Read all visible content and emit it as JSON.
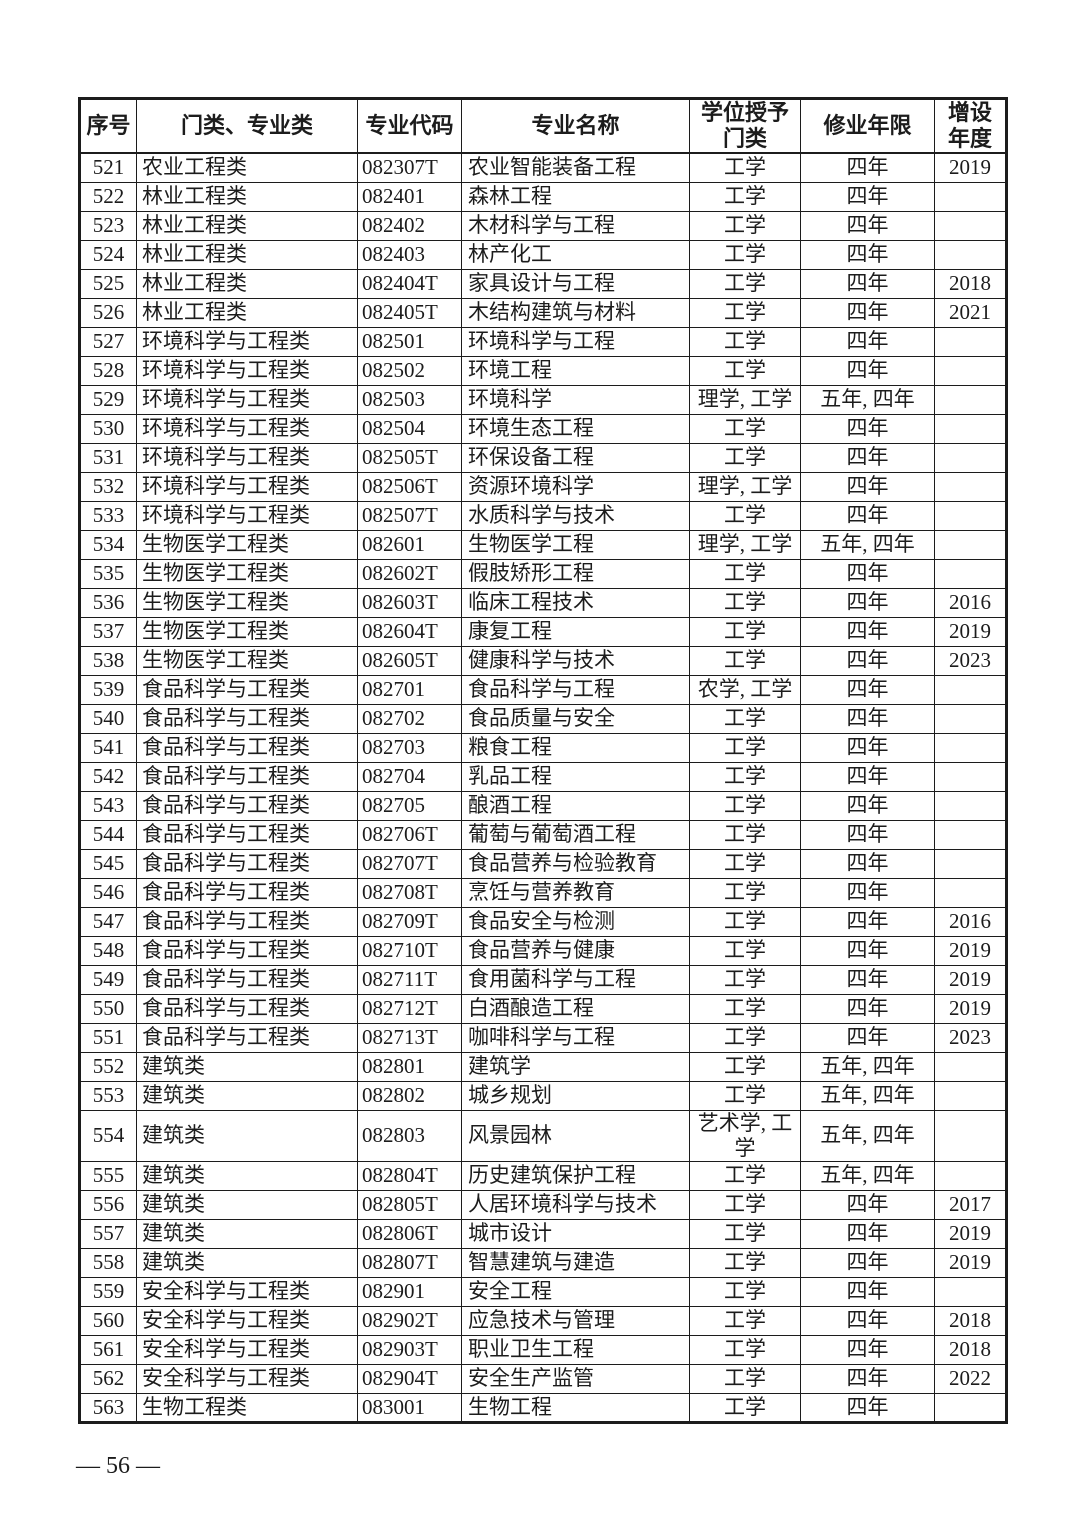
{
  "page": {
    "footer_page_number": "— 56 —"
  },
  "table": {
    "headers": [
      "序号",
      "门类、专业类",
      "专业代码",
      "专业名称",
      "学位授予\n门类",
      "修业年限",
      "增设\n年度"
    ],
    "column_keys": [
      "index",
      "category",
      "code",
      "name",
      "degree",
      "duration",
      "year"
    ],
    "rows": [
      [
        "521",
        "农业工程类",
        "082307T",
        "农业智能装备工程",
        "工学",
        "四年",
        "2019"
      ],
      [
        "522",
        "林业工程类",
        "082401",
        "森林工程",
        "工学",
        "四年",
        ""
      ],
      [
        "523",
        "林业工程类",
        "082402",
        "木材科学与工程",
        "工学",
        "四年",
        ""
      ],
      [
        "524",
        "林业工程类",
        "082403",
        "林产化工",
        "工学",
        "四年",
        ""
      ],
      [
        "525",
        "林业工程类",
        "082404T",
        "家具设计与工程",
        "工学",
        "四年",
        "2018"
      ],
      [
        "526",
        "林业工程类",
        "082405T",
        "木结构建筑与材料",
        "工学",
        "四年",
        "2021"
      ],
      [
        "527",
        "环境科学与工程类",
        "082501",
        "环境科学与工程",
        "工学",
        "四年",
        ""
      ],
      [
        "528",
        "环境科学与工程类",
        "082502",
        "环境工程",
        "工学",
        "四年",
        ""
      ],
      [
        "529",
        "环境科学与工程类",
        "082503",
        "环境科学",
        "理学, 工学",
        "五年, 四年",
        ""
      ],
      [
        "530",
        "环境科学与工程类",
        "082504",
        "环境生态工程",
        "工学",
        "四年",
        ""
      ],
      [
        "531",
        "环境科学与工程类",
        "082505T",
        "环保设备工程",
        "工学",
        "四年",
        ""
      ],
      [
        "532",
        "环境科学与工程类",
        "082506T",
        "资源环境科学",
        "理学, 工学",
        "四年",
        ""
      ],
      [
        "533",
        "环境科学与工程类",
        "082507T",
        "水质科学与技术",
        "工学",
        "四年",
        ""
      ],
      [
        "534",
        "生物医学工程类",
        "082601",
        "生物医学工程",
        "理学, 工学",
        "五年, 四年",
        ""
      ],
      [
        "535",
        "生物医学工程类",
        "082602T",
        "假肢矫形工程",
        "工学",
        "四年",
        ""
      ],
      [
        "536",
        "生物医学工程类",
        "082603T",
        "临床工程技术",
        "工学",
        "四年",
        "2016"
      ],
      [
        "537",
        "生物医学工程类",
        "082604T",
        "康复工程",
        "工学",
        "四年",
        "2019"
      ],
      [
        "538",
        "生物医学工程类",
        "082605T",
        "健康科学与技术",
        "工学",
        "四年",
        "2023"
      ],
      [
        "539",
        "食品科学与工程类",
        "082701",
        "食品科学与工程",
        "农学, 工学",
        "四年",
        ""
      ],
      [
        "540",
        "食品科学与工程类",
        "082702",
        "食品质量与安全",
        "工学",
        "四年",
        ""
      ],
      [
        "541",
        "食品科学与工程类",
        "082703",
        "粮食工程",
        "工学",
        "四年",
        ""
      ],
      [
        "542",
        "食品科学与工程类",
        "082704",
        "乳品工程",
        "工学",
        "四年",
        ""
      ],
      [
        "543",
        "食品科学与工程类",
        "082705",
        "酿酒工程",
        "工学",
        "四年",
        ""
      ],
      [
        "544",
        "食品科学与工程类",
        "082706T",
        "葡萄与葡萄酒工程",
        "工学",
        "四年",
        ""
      ],
      [
        "545",
        "食品科学与工程类",
        "082707T",
        "食品营养与检验教育",
        "工学",
        "四年",
        ""
      ],
      [
        "546",
        "食品科学与工程类",
        "082708T",
        "烹饪与营养教育",
        "工学",
        "四年",
        ""
      ],
      [
        "547",
        "食品科学与工程类",
        "082709T",
        "食品安全与检测",
        "工学",
        "四年",
        "2016"
      ],
      [
        "548",
        "食品科学与工程类",
        "082710T",
        "食品营养与健康",
        "工学",
        "四年",
        "2019"
      ],
      [
        "549",
        "食品科学与工程类",
        "082711T",
        "食用菌科学与工程",
        "工学",
        "四年",
        "2019"
      ],
      [
        "550",
        "食品科学与工程类",
        "082712T",
        "白酒酿造工程",
        "工学",
        "四年",
        "2019"
      ],
      [
        "551",
        "食品科学与工程类",
        "082713T",
        "咖啡科学与工程",
        "工学",
        "四年",
        "2023"
      ],
      [
        "552",
        "建筑类",
        "082801",
        "建筑学",
        "工学",
        "五年, 四年",
        ""
      ],
      [
        "553",
        "建筑类",
        "082802",
        "城乡规划",
        "工学",
        "五年, 四年",
        ""
      ],
      [
        "554",
        "建筑类",
        "082803",
        "风景园林",
        "艺术学, 工\n学",
        "五年, 四年",
        ""
      ],
      [
        "555",
        "建筑类",
        "082804T",
        "历史建筑保护工程",
        "工学",
        "五年, 四年",
        ""
      ],
      [
        "556",
        "建筑类",
        "082805T",
        "人居环境科学与技术",
        "工学",
        "四年",
        "2017"
      ],
      [
        "557",
        "建筑类",
        "082806T",
        "城市设计",
        "工学",
        "四年",
        "2019"
      ],
      [
        "558",
        "建筑类",
        "082807T",
        "智慧建筑与建造",
        "工学",
        "四年",
        "2019"
      ],
      [
        "559",
        "安全科学与工程类",
        "082901",
        "安全工程",
        "工学",
        "四年",
        ""
      ],
      [
        "560",
        "安全科学与工程类",
        "082902T",
        "应急技术与管理",
        "工学",
        "四年",
        "2018"
      ],
      [
        "561",
        "安全科学与工程类",
        "082903T",
        "职业卫生工程",
        "工学",
        "四年",
        "2018"
      ],
      [
        "562",
        "安全科学与工程类",
        "082904T",
        "安全生产监管",
        "工学",
        "四年",
        "2022"
      ],
      [
        "563",
        "生物工程类",
        "083001",
        "生物工程",
        "工学",
        "四年",
        ""
      ]
    ]
  }
}
